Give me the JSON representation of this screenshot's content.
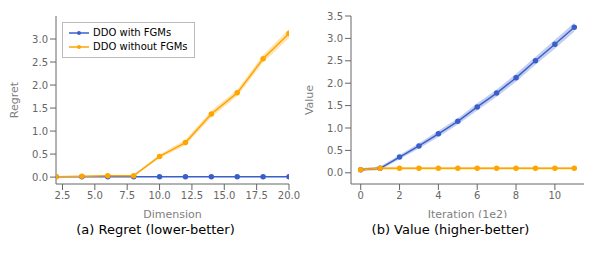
{
  "chart_data": [
    {
      "type": "line",
      "title": "(a) Regret (lower-better)",
      "x_label": "Dimension",
      "y_label": "Regret",
      "xlim": [
        2,
        20
      ],
      "ylim": [
        -0.15,
        3.5
      ],
      "xticks": [
        2.5,
        {
          "value": 5,
          "label": "5.0"
        },
        7.5,
        {
          "value": 10,
          "label": "10.0"
        },
        12.5,
        {
          "value": 15,
          "label": "15.0"
        },
        17.5,
        {
          "value": 20,
          "label": "20.0"
        }
      ],
      "yticks": [
        {
          "value": 0,
          "label": "0.0"
        },
        0.5,
        {
          "value": 1,
          "label": "1.0"
        },
        1.5,
        {
          "value": 2,
          "label": "2.0"
        },
        2.5,
        {
          "value": 3,
          "label": "3.0"
        }
      ],
      "legend": "upper left",
      "marker": "circle",
      "x": [
        2,
        4,
        6,
        8,
        10,
        12,
        14,
        16,
        18,
        20
      ],
      "series": [
        {
          "name": "DDO with FGMs",
          "color": "#3a5fcb",
          "values": [
            0.01,
            0.01,
            0.01,
            0.01,
            0.01,
            0.01,
            0.01,
            0.01,
            0.01,
            0.01
          ],
          "yerr": [
            0.005,
            0.005,
            0.005,
            0.005,
            0.005,
            0.005,
            0.005,
            0.005,
            0.005,
            0.005
          ]
        },
        {
          "name": "DDO without FGMs",
          "color": "#ffa500",
          "values": [
            0.01,
            0.02,
            0.03,
            0.03,
            0.45,
            0.75,
            1.37,
            1.83,
            2.57,
            3.12
          ],
          "yerr": [
            0.005,
            0.005,
            0.005,
            0.01,
            0.04,
            0.06,
            0.07,
            0.07,
            0.08,
            0.1
          ]
        }
      ]
    },
    {
      "type": "line",
      "title": "(b) Value (higher-better)",
      "x_label": "Iteration (1e2)",
      "y_label": "Value",
      "xlim": [
        -0.5,
        11.5
      ],
      "ylim": [
        -0.25,
        3.5
      ],
      "xticks": [
        0,
        2,
        4,
        6,
        8,
        10
      ],
      "yticks": [
        {
          "value": 0,
          "label": "0.0"
        },
        0.5,
        {
          "value": 1,
          "label": "1.0"
        },
        1.5,
        {
          "value": 2,
          "label": "2.0"
        },
        2.5,
        {
          "value": 3,
          "label": "3.0"
        },
        3.5
      ],
      "marker": "circle",
      "x": [
        0,
        1,
        2,
        3,
        4,
        5,
        6,
        7,
        8,
        9,
        10,
        11
      ],
      "series": [
        {
          "color": "#3a5fcb",
          "values": [
            0.07,
            0.1,
            0.35,
            0.6,
            0.87,
            1.15,
            1.47,
            1.78,
            2.12,
            2.5,
            2.87,
            3.25
          ],
          "yerr": [
            0.03,
            0.04,
            0.05,
            0.06,
            0.07,
            0.07,
            0.08,
            0.08,
            0.09,
            0.09,
            0.1,
            0.1
          ]
        },
        {
          "color": "#ffa500",
          "values": [
            0.07,
            0.1,
            0.1,
            0.1,
            0.1,
            0.1,
            0.1,
            0.1,
            0.1,
            0.1,
            0.1,
            0.1
          ],
          "yerr": [
            0.03,
            0.04,
            0.03,
            0.03,
            0.03,
            0.03,
            0.03,
            0.03,
            0.03,
            0.03,
            0.03,
            0.03
          ]
        }
      ]
    }
  ]
}
